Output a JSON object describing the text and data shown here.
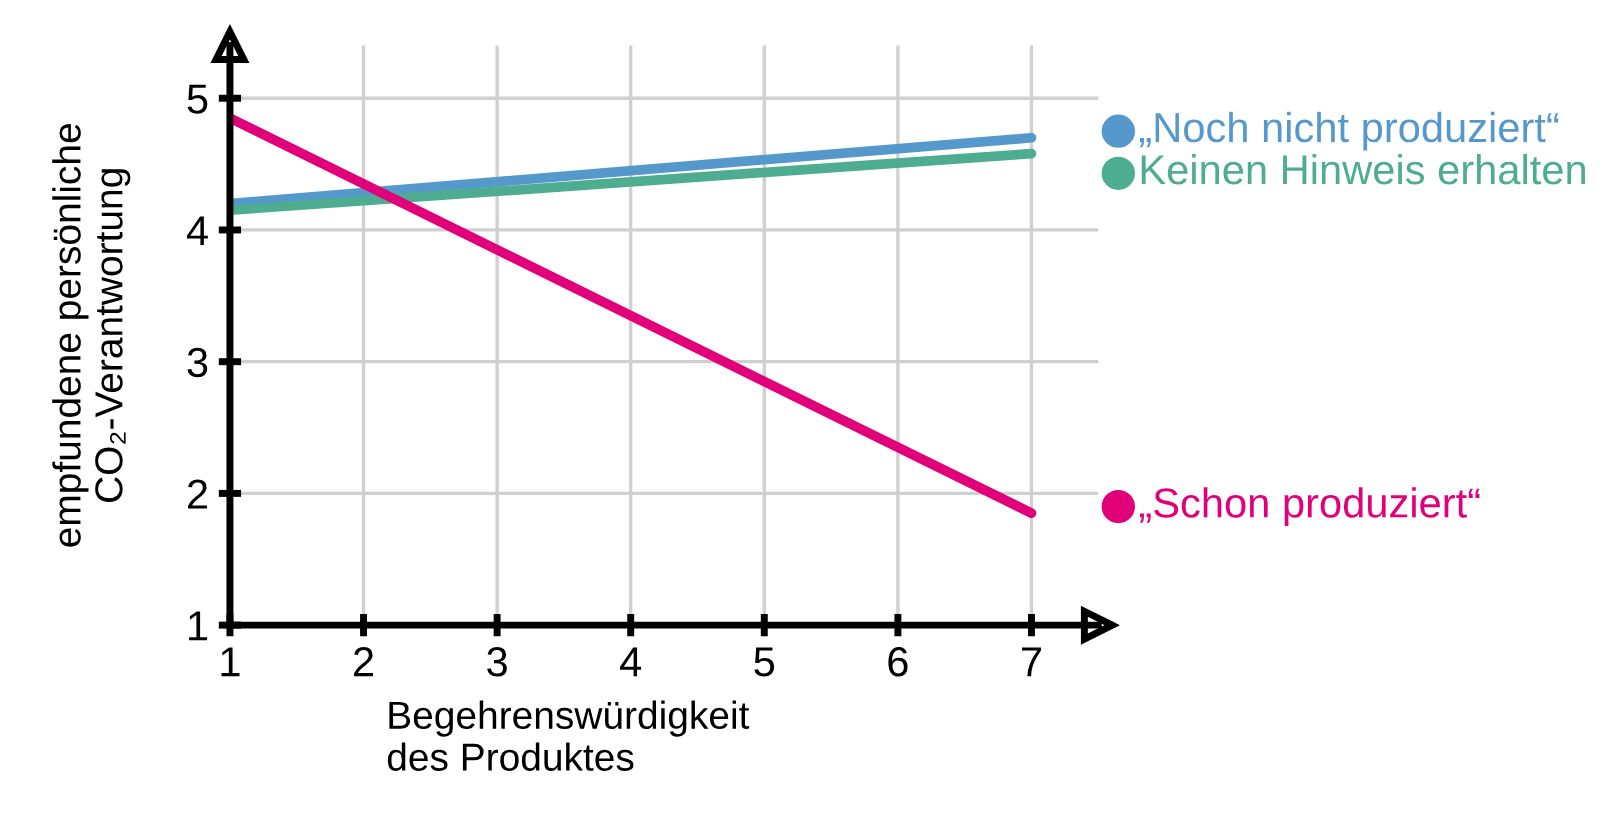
{
  "chart_data": {
    "type": "line",
    "xlabel": "Begehrenswürdigkeit\ndes Produktes",
    "ylabel": "empfundene persönliche\nCO₂-Verantwortung",
    "x": [
      1,
      7
    ],
    "series": [
      {
        "name": "„Noch nicht produziert“",
        "color": "#5598cc",
        "values": [
          4.2,
          4.7
        ]
      },
      {
        "name": "Keinen Hinweis erhalten",
        "color": "#4ead90",
        "values": [
          4.15,
          4.58
        ]
      },
      {
        "name": "„Schon produziert“",
        "color": "#e2007a",
        "values": [
          4.85,
          1.85
        ]
      }
    ],
    "xlim": [
      1,
      7.5
    ],
    "ylim": [
      1,
      5.4
    ],
    "xticks": [
      1,
      2,
      3,
      4,
      5,
      6,
      7
    ],
    "yticks": [
      1,
      2,
      3,
      4,
      5
    ],
    "grid": true,
    "legend": "right",
    "marker": "none",
    "line_style": "solid"
  }
}
